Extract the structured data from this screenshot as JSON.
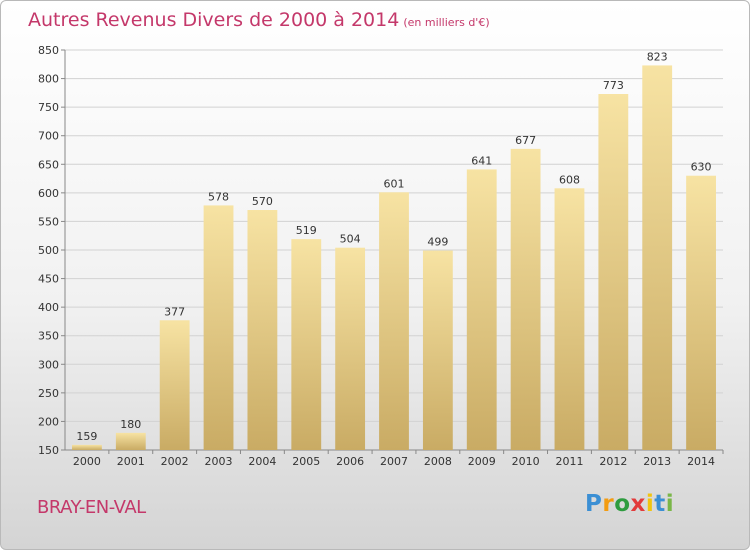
{
  "chart_data": {
    "type": "bar",
    "title": "Autres Revenus Divers de 2000 à 2014",
    "unit_label": "(en milliers d'€)",
    "categories": [
      "2000",
      "2001",
      "2002",
      "2003",
      "2004",
      "2005",
      "2006",
      "2007",
      "2008",
      "2009",
      "2010",
      "2011",
      "2012",
      "2013",
      "2014"
    ],
    "values": [
      159,
      180,
      377,
      578,
      570,
      519,
      504,
      601,
      499,
      641,
      677,
      608,
      773,
      823,
      630
    ],
    "ylim": [
      150,
      850
    ],
    "yticks": [
      150,
      200,
      250,
      300,
      350,
      400,
      450,
      500,
      550,
      600,
      650,
      700,
      750,
      800,
      850
    ],
    "grid": true,
    "bar_color_light": "#f7e3a3",
    "bar_color_dark": "#c9ab64"
  },
  "location": "BRAY-EN-VAL",
  "brand": {
    "letters": [
      "P",
      "r",
      "o",
      "x",
      "i",
      "t",
      "i"
    ],
    "colors": [
      "#3b8fd4",
      "#f39c12",
      "#2e9c3f",
      "#e23b3b",
      "#f1c40f",
      "#3b8fd4",
      "#7ab648"
    ]
  }
}
